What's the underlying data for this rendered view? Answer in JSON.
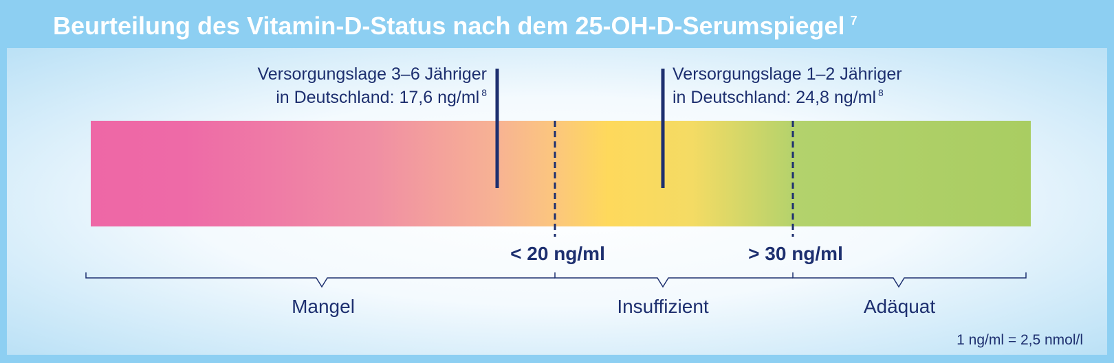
{
  "header": {
    "title": "Beurteilung des Vitamin-D-Status nach dem 25-OH-D-Serumspiegel",
    "reference": "7"
  },
  "markers": [
    {
      "line1": "Versorgungslage 3–6 Jähriger",
      "line2": "in Deutschland: 17,6 ng/ml",
      "reference": "8"
    },
    {
      "line1": "Versorgungslage 1–2 Jähriger",
      "line2": "in Deutschland: 24,8 ng/ml",
      "reference": "8"
    }
  ],
  "thresholds": [
    "< 20 ng/ml",
    "> 30 ng/ml"
  ],
  "ranges": [
    "Mangel",
    "Insuffizient",
    "Adäquat"
  ],
  "footnote": "1 ng/ml = 2,5 nmol/l"
}
